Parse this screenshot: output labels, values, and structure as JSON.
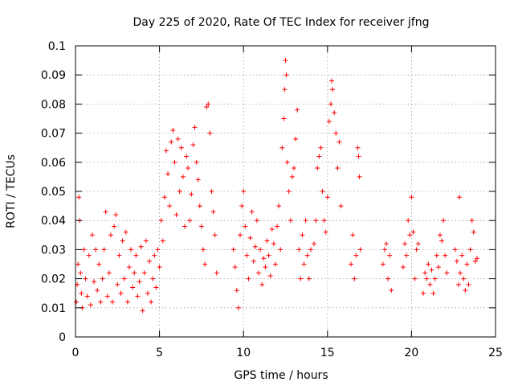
{
  "chart_data": {
    "type": "scatter",
    "title": "Day 225 of 2020, Rate Of TEC Index for receiver jfng",
    "xlabel": "GPS time / hours",
    "ylabel": "ROTI / TECUs",
    "xlim": [
      0,
      25
    ],
    "ylim": [
      0,
      0.1
    ],
    "x_ticks": [
      "0",
      "5",
      "10",
      "15",
      "20",
      "25"
    ],
    "y_ticks": [
      "0",
      "0.01",
      "0.02",
      "0.03",
      "0.04",
      "0.05",
      "0.06",
      "0.07",
      "0.08",
      "0.09",
      "0.1"
    ],
    "grid": true,
    "marker": "+",
    "series_color": "#ff0000",
    "series": [
      {
        "points": [
          [
            0.05,
            0.012
          ],
          [
            0.1,
            0.018
          ],
          [
            0.15,
            0.025
          ],
          [
            0.2,
            0.048
          ],
          [
            0.25,
            0.04
          ],
          [
            0.3,
            0.022
          ],
          [
            0.35,
            0.015
          ],
          [
            0.4,
            0.01
          ],
          [
            0.5,
            0.03
          ],
          [
            0.6,
            0.02
          ],
          [
            0.7,
            0.014
          ],
          [
            0.8,
            0.028
          ],
          [
            0.9,
            0.011
          ],
          [
            1.0,
            0.035
          ],
          [
            1.1,
            0.019
          ],
          [
            1.2,
            0.03
          ],
          [
            1.3,
            0.016
          ],
          [
            1.4,
            0.025
          ],
          [
            1.5,
            0.012
          ],
          [
            1.6,
            0.02
          ],
          [
            1.7,
            0.03
          ],
          [
            1.8,
            0.043
          ],
          [
            1.9,
            0.014
          ],
          [
            2.0,
            0.022
          ],
          [
            2.1,
            0.035
          ],
          [
            2.2,
            0.012
          ],
          [
            2.3,
            0.038
          ],
          [
            2.4,
            0.042
          ],
          [
            2.5,
            0.018
          ],
          [
            2.6,
            0.028
          ],
          [
            2.7,
            0.015
          ],
          [
            2.8,
            0.033
          ],
          [
            2.9,
            0.02
          ],
          [
            3.0,
            0.036
          ],
          [
            3.1,
            0.012
          ],
          [
            3.2,
            0.024
          ],
          [
            3.3,
            0.03
          ],
          [
            3.4,
            0.017
          ],
          [
            3.5,
            0.022
          ],
          [
            3.6,
            0.028
          ],
          [
            3.7,
            0.014
          ],
          [
            3.8,
            0.019
          ],
          [
            3.9,
            0.031
          ],
          [
            4.0,
            0.009
          ],
          [
            4.1,
            0.022
          ],
          [
            4.2,
            0.033
          ],
          [
            4.3,
            0.015
          ],
          [
            4.4,
            0.026
          ],
          [
            4.5,
            0.012
          ],
          [
            4.6,
            0.02
          ],
          [
            4.7,
            0.028
          ],
          [
            4.8,
            0.017
          ],
          [
            4.9,
            0.03
          ],
          [
            5.0,
            0.024
          ],
          [
            5.1,
            0.04
          ],
          [
            5.2,
            0.033
          ],
          [
            5.3,
            0.048
          ],
          [
            5.4,
            0.064
          ],
          [
            5.5,
            0.056
          ],
          [
            5.6,
            0.045
          ],
          [
            5.7,
            0.067
          ],
          [
            5.8,
            0.071
          ],
          [
            5.9,
            0.06
          ],
          [
            6.0,
            0.042
          ],
          [
            6.1,
            0.068
          ],
          [
            6.2,
            0.05
          ],
          [
            6.3,
            0.065
          ],
          [
            6.4,
            0.055
          ],
          [
            6.5,
            0.038
          ],
          [
            6.6,
            0.062
          ],
          [
            6.7,
            0.058
          ],
          [
            6.8,
            0.04
          ],
          [
            6.9,
            0.049
          ],
          [
            7.0,
            0.066
          ],
          [
            7.1,
            0.072
          ],
          [
            7.2,
            0.06
          ],
          [
            7.3,
            0.054
          ],
          [
            7.4,
            0.045
          ],
          [
            7.5,
            0.038
          ],
          [
            7.6,
            0.03
          ],
          [
            7.7,
            0.025
          ],
          [
            7.8,
            0.079
          ],
          [
            7.9,
            0.08
          ],
          [
            8.0,
            0.07
          ],
          [
            8.1,
            0.05
          ],
          [
            8.2,
            0.043
          ],
          [
            8.3,
            0.035
          ],
          [
            8.4,
            0.022
          ],
          [
            9.4,
            0.03
          ],
          [
            9.5,
            0.024
          ],
          [
            9.6,
            0.016
          ],
          [
            9.7,
            0.01
          ],
          [
            9.8,
            0.035
          ],
          [
            9.9,
            0.045
          ],
          [
            10.0,
            0.05
          ],
          [
            10.1,
            0.038
          ],
          [
            10.2,
            0.028
          ],
          [
            10.3,
            0.02
          ],
          [
            10.4,
            0.034
          ],
          [
            10.5,
            0.043
          ],
          [
            10.6,
            0.026
          ],
          [
            10.7,
            0.031
          ],
          [
            10.8,
            0.04
          ],
          [
            10.9,
            0.022
          ],
          [
            11.0,
            0.03
          ],
          [
            11.1,
            0.018
          ],
          [
            11.2,
            0.027
          ],
          [
            11.3,
            0.024
          ],
          [
            11.4,
            0.033
          ],
          [
            11.5,
            0.028
          ],
          [
            11.6,
            0.021
          ],
          [
            11.7,
            0.037
          ],
          [
            11.8,
            0.032
          ],
          [
            11.9,
            0.025
          ],
          [
            12.0,
            0.038
          ],
          [
            12.1,
            0.045
          ],
          [
            12.2,
            0.03
          ],
          [
            12.3,
            0.065
          ],
          [
            12.4,
            0.075
          ],
          [
            12.45,
            0.085
          ],
          [
            12.5,
            0.095
          ],
          [
            12.55,
            0.09
          ],
          [
            12.6,
            0.06
          ],
          [
            12.7,
            0.05
          ],
          [
            12.8,
            0.04
          ],
          [
            12.9,
            0.055
          ],
          [
            13.0,
            0.058
          ],
          [
            13.1,
            0.068
          ],
          [
            13.2,
            0.078
          ],
          [
            13.3,
            0.03
          ],
          [
            13.4,
            0.02
          ],
          [
            13.5,
            0.035
          ],
          [
            13.6,
            0.025
          ],
          [
            13.7,
            0.04
          ],
          [
            13.8,
            0.028
          ],
          [
            13.9,
            0.02
          ],
          [
            14.0,
            0.03
          ],
          [
            14.2,
            0.032
          ],
          [
            14.3,
            0.04
          ],
          [
            14.4,
            0.058
          ],
          [
            14.5,
            0.062
          ],
          [
            14.6,
            0.065
          ],
          [
            14.7,
            0.05
          ],
          [
            14.8,
            0.04
          ],
          [
            14.9,
            0.036
          ],
          [
            15.0,
            0.048
          ],
          [
            15.1,
            0.074
          ],
          [
            15.2,
            0.08
          ],
          [
            15.25,
            0.088
          ],
          [
            15.3,
            0.085
          ],
          [
            15.4,
            0.077
          ],
          [
            15.5,
            0.07
          ],
          [
            15.6,
            0.058
          ],
          [
            15.7,
            0.067
          ],
          [
            15.8,
            0.045
          ],
          [
            16.4,
            0.025
          ],
          [
            16.5,
            0.035
          ],
          [
            16.6,
            0.02
          ],
          [
            16.7,
            0.028
          ],
          [
            16.8,
            0.065
          ],
          [
            16.85,
            0.062
          ],
          [
            16.9,
            0.055
          ],
          [
            16.95,
            0.03
          ],
          [
            18.3,
            0.025
          ],
          [
            18.4,
            0.03
          ],
          [
            18.5,
            0.032
          ],
          [
            18.6,
            0.02
          ],
          [
            18.7,
            0.028
          ],
          [
            18.8,
            0.016
          ],
          [
            19.5,
            0.024
          ],
          [
            19.6,
            0.032
          ],
          [
            19.7,
            0.028
          ],
          [
            19.8,
            0.04
          ],
          [
            19.9,
            0.035
          ],
          [
            20.0,
            0.048
          ],
          [
            20.1,
            0.036
          ],
          [
            20.2,
            0.02
          ],
          [
            20.3,
            0.03
          ],
          [
            20.4,
            0.032
          ],
          [
            20.7,
            0.015
          ],
          [
            20.8,
            0.022
          ],
          [
            20.9,
            0.02
          ],
          [
            21.0,
            0.025
          ],
          [
            21.1,
            0.018
          ],
          [
            21.2,
            0.023
          ],
          [
            21.3,
            0.015
          ],
          [
            21.4,
            0.02
          ],
          [
            21.5,
            0.028
          ],
          [
            21.6,
            0.024
          ],
          [
            21.7,
            0.035
          ],
          [
            21.8,
            0.033
          ],
          [
            21.9,
            0.04
          ],
          [
            22.0,
            0.028
          ],
          [
            22.1,
            0.022
          ],
          [
            22.6,
            0.03
          ],
          [
            22.7,
            0.026
          ],
          [
            22.8,
            0.018
          ],
          [
            22.85,
            0.048
          ],
          [
            22.9,
            0.022
          ],
          [
            23.0,
            0.028
          ],
          [
            23.1,
            0.02
          ],
          [
            23.2,
            0.016
          ],
          [
            23.3,
            0.025
          ],
          [
            23.4,
            0.018
          ],
          [
            23.5,
            0.03
          ],
          [
            23.6,
            0.04
          ],
          [
            23.7,
            0.036
          ],
          [
            23.8,
            0.026
          ],
          [
            23.9,
            0.027
          ]
        ]
      }
    ]
  }
}
